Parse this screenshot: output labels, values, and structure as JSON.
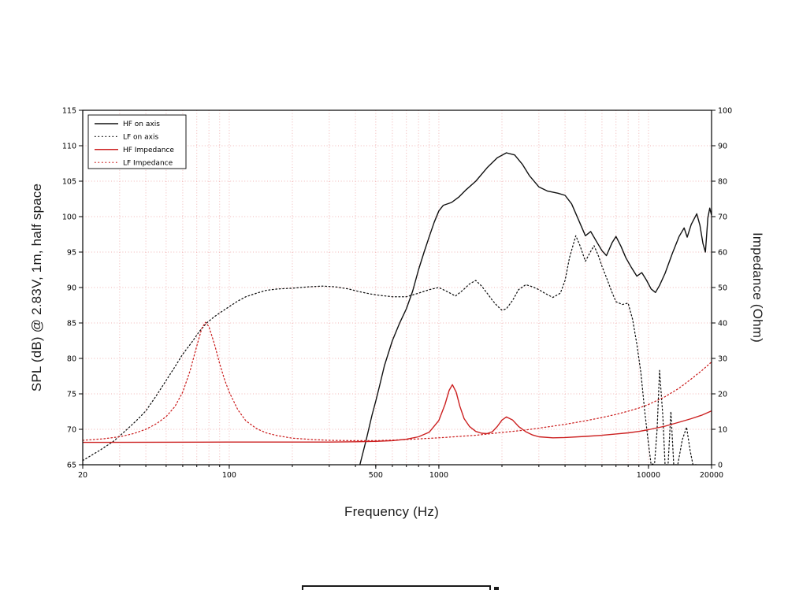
{
  "chart_data": {
    "type": "line",
    "x_axis": {
      "label": "Frequency (Hz)",
      "scale": "log",
      "min": 20,
      "max": 20000,
      "labeled_ticks": [
        {
          "value": 20,
          "label": "20"
        },
        {
          "value": 100,
          "label": "100"
        },
        {
          "value": 500,
          "label": "500"
        },
        {
          "value": 1000,
          "label": "1000"
        },
        {
          "value": 10000,
          "label": "10000"
        },
        {
          "value": 20000,
          "label": "20000"
        }
      ],
      "minor_ticks": [
        20,
        30,
        40,
        50,
        60,
        70,
        80,
        90,
        100,
        200,
        300,
        400,
        500,
        600,
        700,
        800,
        900,
        1000,
        2000,
        3000,
        4000,
        5000,
        6000,
        7000,
        8000,
        9000,
        10000,
        20000
      ]
    },
    "y_left_axis": {
      "label": "SPL (dB) @ 2.83V, 1m, half space",
      "min": 65,
      "max": 115,
      "tick_step": 5,
      "ticks": [
        65,
        70,
        75,
        80,
        85,
        90,
        95,
        100,
        105,
        110,
        115
      ]
    },
    "y_right_axis": {
      "label": "Impedance (Ohm)",
      "min": 0,
      "max": 100,
      "tick_step": 10,
      "ticks": [
        0,
        10,
        20,
        30,
        40,
        50,
        60,
        70,
        80,
        90,
        100
      ]
    },
    "grid": {
      "show": true,
      "color": "#f0b4b4",
      "style": "dotted"
    },
    "legend": {
      "position": "top-left"
    },
    "colors": {
      "black": "#111111",
      "red": "#cc2020"
    },
    "series": [
      {
        "name": "HF on axis",
        "axis": "left",
        "style": "solid",
        "color": "#111111",
        "points": [
          [
            420,
            65
          ],
          [
            450,
            68.5
          ],
          [
            480,
            72
          ],
          [
            500,
            74
          ],
          [
            520,
            76
          ],
          [
            550,
            79
          ],
          [
            600,
            82.5
          ],
          [
            650,
            85
          ],
          [
            700,
            87
          ],
          [
            750,
            89.5
          ],
          [
            800,
            92.5
          ],
          [
            850,
            95
          ],
          [
            900,
            97.2
          ],
          [
            950,
            99.2
          ],
          [
            1000,
            100.8
          ],
          [
            1050,
            101.6
          ],
          [
            1150,
            102
          ],
          [
            1250,
            102.8
          ],
          [
            1350,
            103.8
          ],
          [
            1500,
            105
          ],
          [
            1700,
            106.9
          ],
          [
            1900,
            108.3
          ],
          [
            2100,
            109
          ],
          [
            2300,
            108.7
          ],
          [
            2500,
            107.4
          ],
          [
            2700,
            105.8
          ],
          [
            3000,
            104.2
          ],
          [
            3300,
            103.6
          ],
          [
            3700,
            103.3
          ],
          [
            4000,
            103
          ],
          [
            4300,
            101.8
          ],
          [
            4600,
            99.8
          ],
          [
            5000,
            97.3
          ],
          [
            5300,
            97.9
          ],
          [
            5700,
            96.3
          ],
          [
            6000,
            95.2
          ],
          [
            6300,
            94.5
          ],
          [
            6700,
            96.3
          ],
          [
            7000,
            97.2
          ],
          [
            7400,
            95.8
          ],
          [
            7800,
            94.2
          ],
          [
            8300,
            92.8
          ],
          [
            8800,
            91.6
          ],
          [
            9300,
            92.1
          ],
          [
            9800,
            91
          ],
          [
            10300,
            89.8
          ],
          [
            10800,
            89.3
          ],
          [
            11300,
            90.3
          ],
          [
            12000,
            92
          ],
          [
            13000,
            94.8
          ],
          [
            14000,
            97.2
          ],
          [
            14800,
            98.4
          ],
          [
            15300,
            97.1
          ],
          [
            16000,
            98.9
          ],
          [
            17000,
            100.4
          ],
          [
            17600,
            98.8
          ],
          [
            18200,
            96.2
          ],
          [
            18700,
            95
          ],
          [
            19200,
            99.8
          ],
          [
            19600,
            101.2
          ],
          [
            20000,
            100.2
          ]
        ]
      },
      {
        "name": "LF on axis",
        "axis": "left",
        "style": "dotted",
        "color": "#111111",
        "points": [
          [
            20,
            65.6
          ],
          [
            24,
            67
          ],
          [
            28,
            68.3
          ],
          [
            32,
            69.8
          ],
          [
            36,
            71.2
          ],
          [
            40,
            72.6
          ],
          [
            45,
            74.8
          ],
          [
            50,
            76.9
          ],
          [
            55,
            78.8
          ],
          [
            60,
            80.6
          ],
          [
            66,
            82.2
          ],
          [
            72,
            83.8
          ],
          [
            78,
            85
          ],
          [
            85,
            85.9
          ],
          [
            92,
            86.6
          ],
          [
            100,
            87.3
          ],
          [
            110,
            88.1
          ],
          [
            120,
            88.7
          ],
          [
            135,
            89.2
          ],
          [
            150,
            89.6
          ],
          [
            170,
            89.8
          ],
          [
            200,
            89.9
          ],
          [
            240,
            90.1
          ],
          [
            280,
            90.2
          ],
          [
            320,
            90.1
          ],
          [
            370,
            89.8
          ],
          [
            420,
            89.4
          ],
          [
            470,
            89.1
          ],
          [
            520,
            88.9
          ],
          [
            600,
            88.7
          ],
          [
            700,
            88.7
          ],
          [
            800,
            89.2
          ],
          [
            900,
            89.7
          ],
          [
            1000,
            90
          ],
          [
            1100,
            89.4
          ],
          [
            1200,
            88.8
          ],
          [
            1300,
            89.6
          ],
          [
            1400,
            90.5
          ],
          [
            1500,
            91
          ],
          [
            1600,
            90.2
          ],
          [
            1700,
            89.2
          ],
          [
            1800,
            88.2
          ],
          [
            1900,
            87.4
          ],
          [
            2000,
            86.8
          ],
          [
            2100,
            87
          ],
          [
            2250,
            88.2
          ],
          [
            2400,
            89.7
          ],
          [
            2600,
            90.4
          ],
          [
            2800,
            90.1
          ],
          [
            3000,
            89.7
          ],
          [
            3200,
            89.2
          ],
          [
            3500,
            88.6
          ],
          [
            3800,
            89.2
          ],
          [
            4000,
            91
          ],
          [
            4200,
            94.2
          ],
          [
            4500,
            97.3
          ],
          [
            4700,
            96
          ],
          [
            5000,
            93.7
          ],
          [
            5300,
            95.1
          ],
          [
            5500,
            95.9
          ],
          [
            5800,
            94.3
          ],
          [
            6000,
            93
          ],
          [
            6300,
            91.4
          ],
          [
            6700,
            89.3
          ],
          [
            7000,
            88
          ],
          [
            7500,
            87.6
          ],
          [
            8000,
            87.8
          ],
          [
            8400,
            85.5
          ],
          [
            8800,
            82
          ],
          [
            9200,
            78
          ],
          [
            9600,
            72.5
          ],
          [
            10000,
            68
          ],
          [
            10300,
            65
          ],
          [
            10700,
            65.2
          ],
          [
            11000,
            70
          ],
          [
            11300,
            78.3
          ],
          [
            11700,
            72
          ],
          [
            12000,
            65
          ],
          [
            12400,
            65
          ],
          [
            12800,
            72.5
          ],
          [
            13200,
            65
          ],
          [
            13800,
            65
          ],
          [
            14500,
            68.5
          ],
          [
            15200,
            70.3
          ],
          [
            15800,
            67
          ],
          [
            16300,
            65
          ],
          [
            17000,
            65
          ]
        ]
      },
      {
        "name": "HF Impedance",
        "axis": "right",
        "style": "solid",
        "color": "#cc2020",
        "points": [
          [
            20,
            6.3
          ],
          [
            100,
            6.4
          ],
          [
            300,
            6.4
          ],
          [
            400,
            6.5
          ],
          [
            500,
            6.6
          ],
          [
            600,
            6.8
          ],
          [
            700,
            7.2
          ],
          [
            800,
            7.9
          ],
          [
            900,
            9.2
          ],
          [
            1000,
            12.5
          ],
          [
            1070,
            17
          ],
          [
            1120,
            21
          ],
          [
            1160,
            22.6
          ],
          [
            1210,
            20.5
          ],
          [
            1260,
            16.5
          ],
          [
            1320,
            13
          ],
          [
            1400,
            10.8
          ],
          [
            1500,
            9.4
          ],
          [
            1600,
            8.9
          ],
          [
            1700,
            8.8
          ],
          [
            1800,
            9.3
          ],
          [
            1900,
            10.8
          ],
          [
            2000,
            12.6
          ],
          [
            2100,
            13.5
          ],
          [
            2250,
            12.6
          ],
          [
            2400,
            10.8
          ],
          [
            2600,
            9.3
          ],
          [
            2800,
            8.4
          ],
          [
            3000,
            7.9
          ],
          [
            3500,
            7.6
          ],
          [
            4000,
            7.7
          ],
          [
            5000,
            8
          ],
          [
            6000,
            8.3
          ],
          [
            7000,
            8.7
          ],
          [
            8000,
            9
          ],
          [
            9000,
            9.4
          ],
          [
            10000,
            9.9
          ],
          [
            12000,
            10.9
          ],
          [
            14000,
            12
          ],
          [
            16000,
            13
          ],
          [
            18000,
            14
          ],
          [
            20000,
            15.2
          ]
        ]
      },
      {
        "name": "LF Impedance",
        "axis": "right",
        "style": "dotted",
        "color": "#cc2020",
        "points": [
          [
            20,
            6.9
          ],
          [
            25,
            7.3
          ],
          [
            30,
            7.9
          ],
          [
            35,
            8.8
          ],
          [
            40,
            10
          ],
          [
            45,
            11.6
          ],
          [
            50,
            13.6
          ],
          [
            55,
            16.4
          ],
          [
            60,
            20.5
          ],
          [
            65,
            26.5
          ],
          [
            70,
            33.5
          ],
          [
            74,
            38.5
          ],
          [
            77,
            40.2
          ],
          [
            80,
            39
          ],
          [
            85,
            34
          ],
          [
            90,
            28.5
          ],
          [
            95,
            24
          ],
          [
            100,
            20.5
          ],
          [
            110,
            15.5
          ],
          [
            120,
            12.4
          ],
          [
            135,
            10.2
          ],
          [
            150,
            9
          ],
          [
            170,
            8.2
          ],
          [
            200,
            7.5
          ],
          [
            250,
            7.1
          ],
          [
            300,
            6.9
          ],
          [
            400,
            6.8
          ],
          [
            500,
            6.8
          ],
          [
            700,
            7.1
          ],
          [
            1000,
            7.6
          ],
          [
            1500,
            8.3
          ],
          [
            2000,
            9.1
          ],
          [
            2500,
            9.7
          ],
          [
            3000,
            10.3
          ],
          [
            4000,
            11.4
          ],
          [
            5000,
            12.4
          ],
          [
            6000,
            13.3
          ],
          [
            7000,
            14.2
          ],
          [
            8000,
            15.1
          ],
          [
            9000,
            16
          ],
          [
            10000,
            17
          ],
          [
            12000,
            19.2
          ],
          [
            14000,
            21.6
          ],
          [
            16000,
            24.2
          ],
          [
            18000,
            26.6
          ],
          [
            20000,
            29
          ]
        ]
      }
    ]
  }
}
